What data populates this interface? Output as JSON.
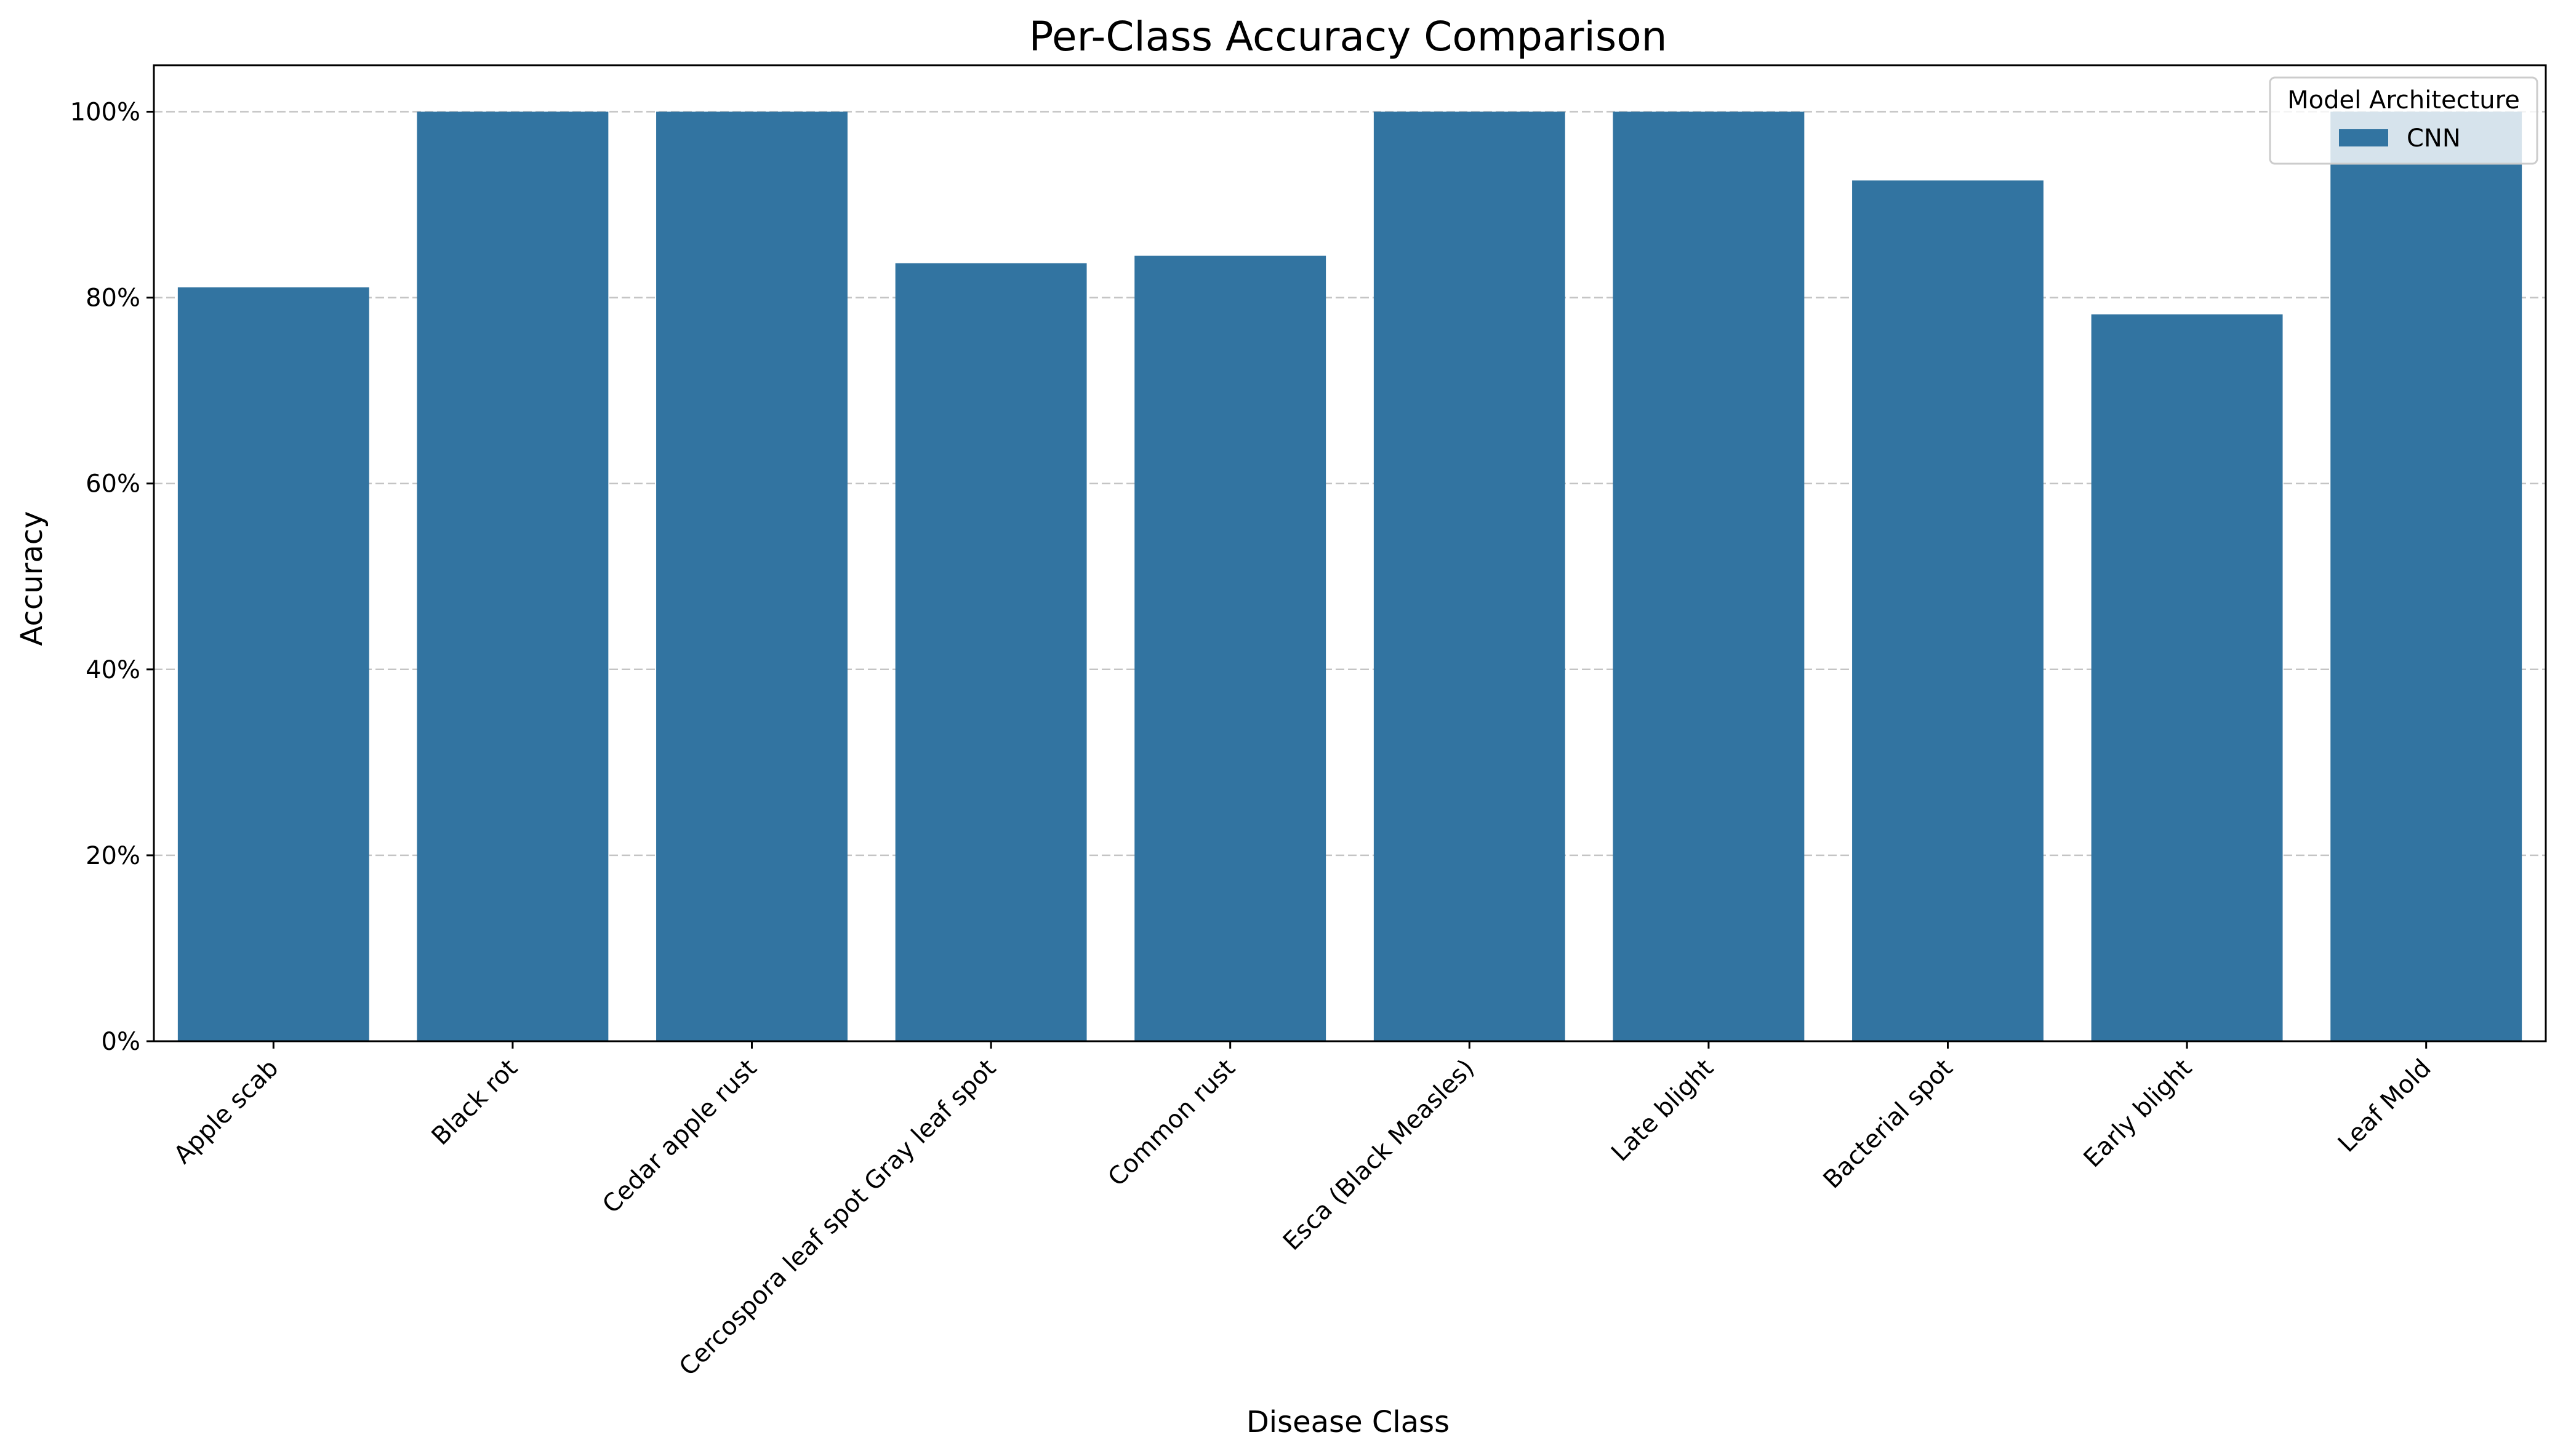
{
  "chart_data": {
    "type": "bar",
    "title": "Per-Class Accuracy Comparison",
    "xlabel": "Disease Class",
    "ylabel": "Accuracy",
    "categories": [
      "Apple scab",
      "Black rot",
      "Cedar apple rust",
      "Cercospora leaf spot Gray leaf spot",
      "Common rust",
      "Esca (Black Measles)",
      "Late blight",
      "Bacterial spot",
      "Early blight",
      "Leaf Mold"
    ],
    "series": [
      {
        "name": "CNN",
        "color": "#3274a1",
        "values": [
          0.811,
          1.0,
          1.0,
          0.837,
          0.845,
          1.0,
          1.0,
          0.926,
          0.782,
          1.0
        ]
      }
    ],
    "ylim": [
      0,
      1.05
    ],
    "yticks": [
      0,
      0.2,
      0.4,
      0.6,
      0.8,
      1.0
    ],
    "ytick_labels": [
      "0%",
      "20%",
      "40%",
      "60%",
      "80%",
      "100%"
    ],
    "grid": true,
    "grid_axis": "y",
    "legend": {
      "title": "Model Architecture",
      "placement": "top-right"
    }
  }
}
